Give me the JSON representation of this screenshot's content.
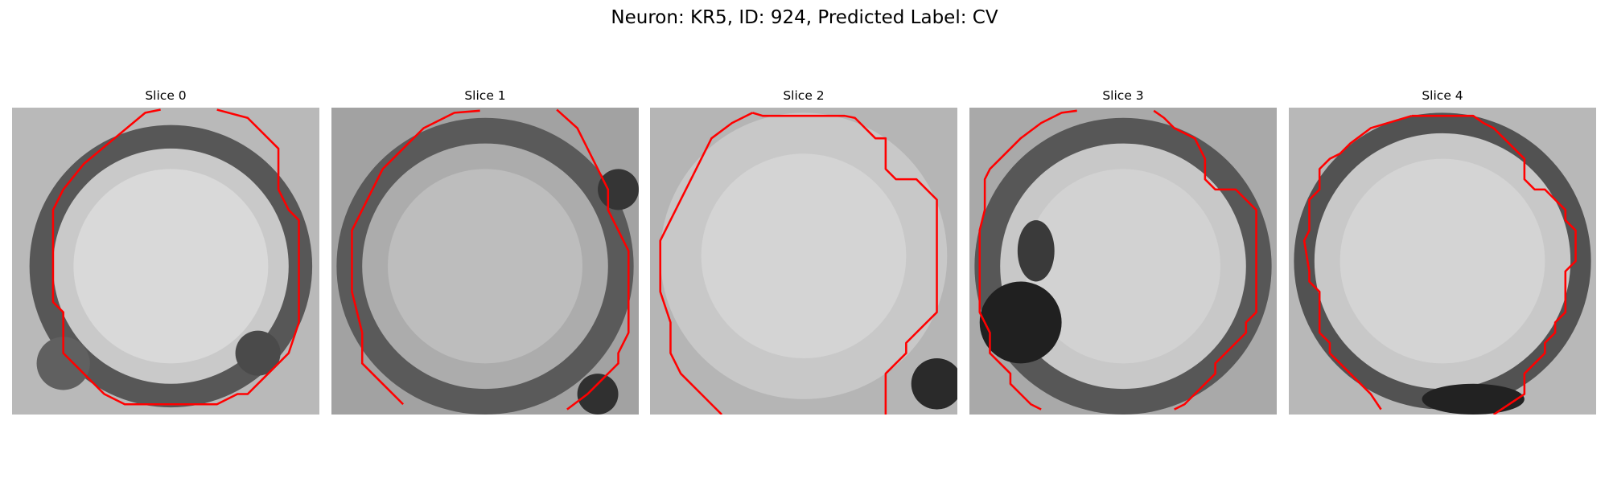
{
  "figure": {
    "title": "Neuron: KR5, ID: 924, Predicted Label: CV"
  },
  "panels": [
    {
      "title": "Slice 0"
    },
    {
      "title": "Slice 1"
    },
    {
      "title": "Slice 2"
    },
    {
      "title": "Slice 3"
    },
    {
      "title": "Slice 4"
    }
  ],
  "colors": {
    "contour": "#ff0000",
    "background": "#ffffff"
  }
}
